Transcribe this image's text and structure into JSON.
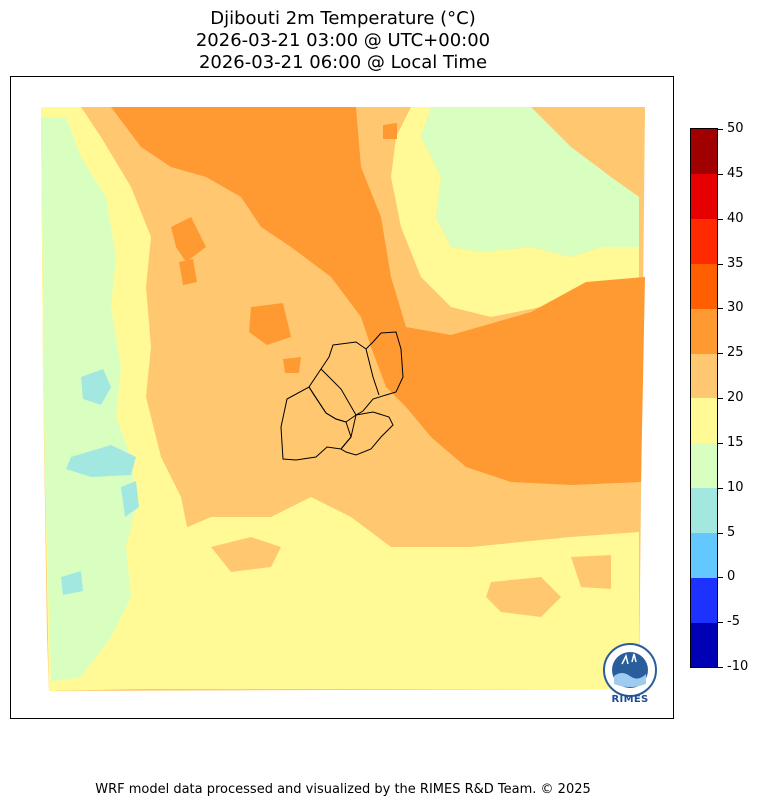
{
  "title": {
    "line1": "Djibouti 2m Temperature (°C)",
    "line2": "2026-03-21 03:00 @ UTC+00:00",
    "line3": "2026-03-21 06:00 @ Local Time"
  },
  "colorbar": {
    "labels": [
      "50",
      "45",
      "40",
      "35",
      "30",
      "25",
      "20",
      "15",
      "10",
      "5",
      "0",
      "-5",
      "-10"
    ],
    "levels": [
      -10,
      -5,
      0,
      5,
      10,
      15,
      20,
      25,
      30,
      35,
      40,
      45,
      50
    ],
    "colors": [
      "#0000b4",
      "#1e32ff",
      "#62c8ff",
      "#a2e8e0",
      "#d8ffc0",
      "#fffa96",
      "#ffc870",
      "#ff9a32",
      "#ff5f00",
      "#ff2a00",
      "#e60000",
      "#a00000"
    ]
  },
  "map_colors": {
    "c5_10": "#a2e8e0",
    "c10_15": "#d8ffc0",
    "c15_20": "#fffa96",
    "c20_25": "#ffc870",
    "c25_30": "#ff9a32",
    "c0_5": "#62c8ff",
    "border": "#000000"
  },
  "logo": {
    "text": "RIMES"
  },
  "credit": "WRF model data processed and visualized by the RIMES R&D Team. © 2025"
}
